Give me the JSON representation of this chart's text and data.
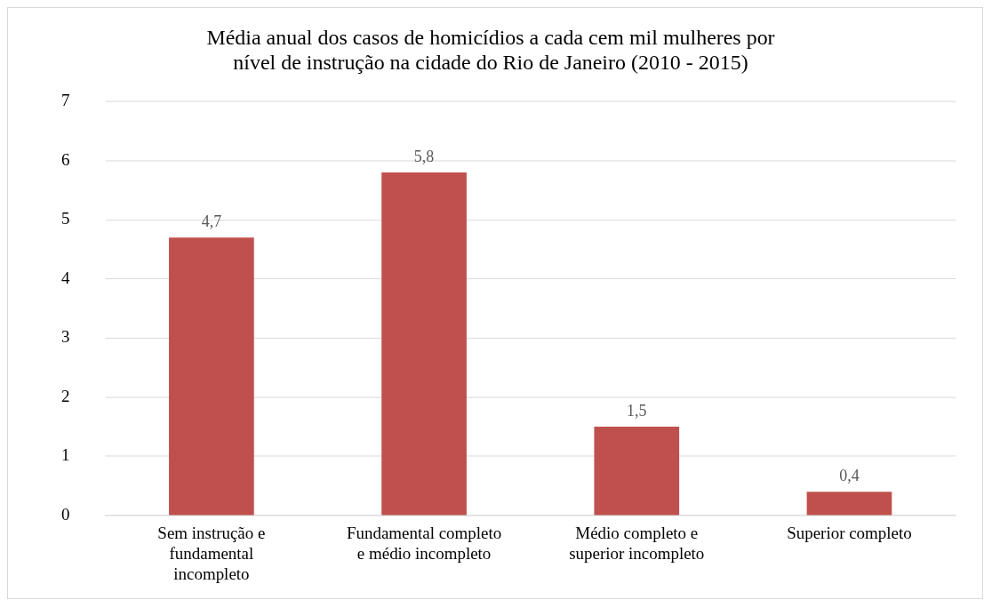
{
  "chart_data": {
    "type": "bar",
    "title": "Média anual dos casos de homicídios a cada cem mil mulheres por nível de instrução na cidade do Rio de Janeiro (2010 - 2015)",
    "categories": [
      "Sem instrução e fundamental incompleto",
      "Fundamental completo e médio incompleto",
      "Médio completo e superior incompleto",
      "Superior completo"
    ],
    "values": [
      4.7,
      5.8,
      1.5,
      0.4
    ],
    "value_labels": [
      "4,7",
      "5,8",
      "1,5",
      "0,4"
    ],
    "color": "#c0504d",
    "ylim": [
      0,
      7
    ],
    "yticks": [
      0,
      1,
      2,
      3,
      4,
      5,
      6,
      7
    ],
    "grid": "y",
    "legend": false
  }
}
